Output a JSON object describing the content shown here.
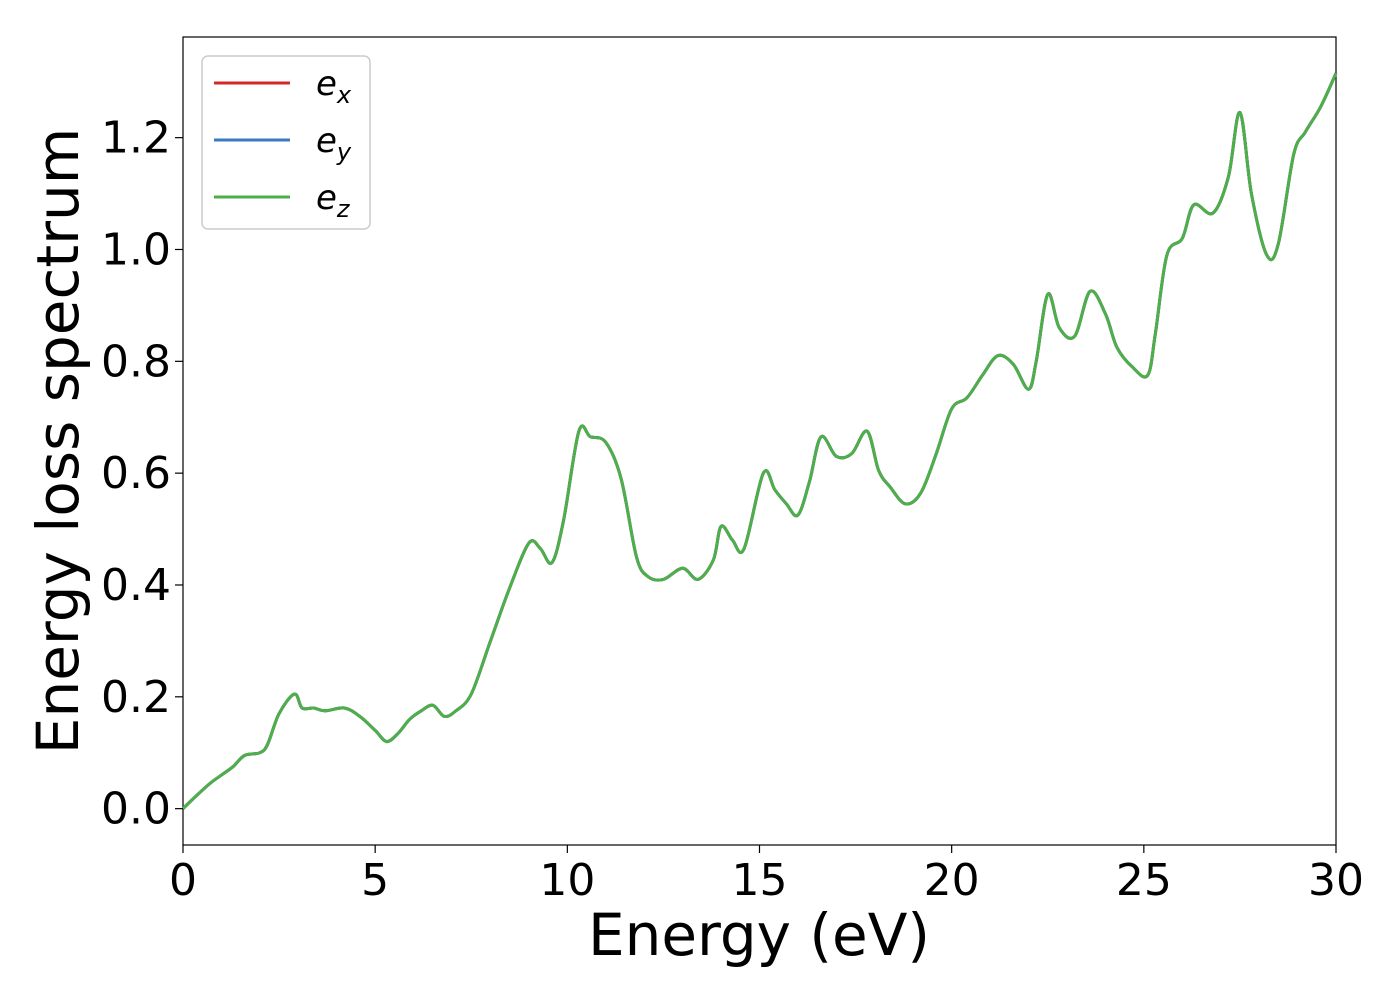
{
  "chart_data": {
    "type": "line",
    "xlabel": "Energy (eV)",
    "ylabel": "Energy loss spectrum",
    "xlim": [
      0,
      30
    ],
    "ylim": [
      -0.065,
      1.38
    ],
    "xticks": [
      "0",
      "5",
      "10",
      "15",
      "20",
      "25",
      "30"
    ],
    "yticks": [
      "0.0",
      "0.2",
      "0.4",
      "0.6",
      "0.8",
      "1.0",
      "1.2"
    ],
    "grid": false,
    "legend_position": "upper-left",
    "series": [
      {
        "name": "e_x",
        "legend_base": "e",
        "legend_sub": "x",
        "color": "#d62728"
      },
      {
        "name": "e_y",
        "legend_base": "e",
        "legend_sub": "y",
        "color": "#3a7bbf"
      },
      {
        "name": "e_z",
        "legend_base": "e",
        "legend_sub": "z",
        "color": "#4daf4a"
      }
    ],
    "x": [
      0,
      0.3,
      0.7,
      1.0,
      1.3,
      1.6,
      2.0,
      2.2,
      2.5,
      2.9,
      3.1,
      3.4,
      3.7,
      4.2,
      4.6,
      5.0,
      5.3,
      5.6,
      5.9,
      6.2,
      6.5,
      6.8,
      7.1,
      7.5,
      8.0,
      8.5,
      9.0,
      9.3,
      9.6,
      9.9,
      10.3,
      10.6,
      11.0,
      11.4,
      11.8,
      12.1,
      12.5,
      13.0,
      13.4,
      13.8,
      14.0,
      14.3,
      14.6,
      15.1,
      15.4,
      15.7,
      16.0,
      16.3,
      16.6,
      17.0,
      17.4,
      17.8,
      18.1,
      18.4,
      18.8,
      19.2,
      19.6,
      20.0,
      20.4,
      20.8,
      21.2,
      21.6,
      22.0,
      22.2,
      22.5,
      22.8,
      23.2,
      23.6,
      24.0,
      24.3,
      24.7,
      25.1,
      25.3,
      25.6,
      26.0,
      26.3,
      26.8,
      27.2,
      27.5,
      27.8,
      28.2,
      28.5,
      28.9,
      29.2,
      29.6,
      30.0
    ],
    "values": [
      0.0,
      0.02,
      0.045,
      0.06,
      0.075,
      0.095,
      0.1,
      0.115,
      0.17,
      0.205,
      0.18,
      0.18,
      0.175,
      0.18,
      0.165,
      0.14,
      0.12,
      0.135,
      0.16,
      0.175,
      0.185,
      0.165,
      0.175,
      0.205,
      0.3,
      0.395,
      0.475,
      0.465,
      0.44,
      0.515,
      0.675,
      0.665,
      0.655,
      0.59,
      0.45,
      0.415,
      0.41,
      0.43,
      0.41,
      0.445,
      0.505,
      0.48,
      0.465,
      0.6,
      0.57,
      0.545,
      0.525,
      0.585,
      0.665,
      0.63,
      0.635,
      0.675,
      0.605,
      0.575,
      0.545,
      0.565,
      0.635,
      0.715,
      0.735,
      0.775,
      0.81,
      0.795,
      0.75,
      0.8,
      0.92,
      0.86,
      0.845,
      0.925,
      0.885,
      0.825,
      0.79,
      0.775,
      0.85,
      0.99,
      1.02,
      1.08,
      1.065,
      1.13,
      1.245,
      1.1,
      0.99,
      1.01,
      1.17,
      1.21,
      1.255,
      1.315
    ]
  }
}
